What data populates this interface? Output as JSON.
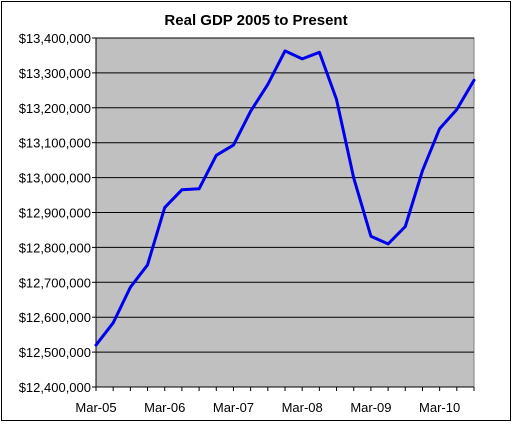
{
  "chart_data": {
    "type": "line",
    "title": "Real GDP 2005 to Present",
    "xlabel": "",
    "ylabel": "",
    "ylim": [
      12400000,
      13400000
    ],
    "yticks": [
      "$12,400,000",
      "$12,500,000",
      "$12,600,000",
      "$12,700,000",
      "$12,800,000",
      "$12,900,000",
      "$13,000,000",
      "$13,100,000",
      "$13,200,000",
      "$13,300,000",
      "$13,400,000"
    ],
    "ytick_values": [
      12400000,
      12500000,
      12600000,
      12700000,
      12800000,
      12900000,
      13000000,
      13100000,
      13200000,
      13300000,
      13400000
    ],
    "xticks": [
      "Mar-05",
      "Mar-06",
      "Mar-07",
      "Mar-08",
      "Mar-09",
      "Mar-10"
    ],
    "xtick_index": [
      0,
      4,
      8,
      12,
      16,
      20
    ],
    "grid": true,
    "legend": "none",
    "colors": {
      "line": "#0000ee",
      "plot_bg": "#c0c0c0",
      "gridline": "#000000"
    },
    "x": [
      "Mar-05",
      "Jun-05",
      "Sep-05",
      "Dec-05",
      "Mar-06",
      "Jun-06",
      "Sep-06",
      "Dec-06",
      "Mar-07",
      "Jun-07",
      "Sep-07",
      "Dec-07",
      "Mar-08",
      "Jun-08",
      "Sep-08",
      "Dec-08",
      "Mar-09",
      "Jun-09",
      "Sep-09",
      "Dec-09",
      "Mar-10",
      "Jun-10",
      "Sep-10"
    ],
    "values": [
      12520000,
      12584000,
      12686000,
      12750000,
      12914000,
      12965000,
      12968000,
      13064000,
      13093000,
      13190000,
      13267000,
      13363000,
      13340000,
      13359000,
      13224000,
      12999000,
      12832000,
      12810000,
      12860000,
      13020000,
      13140000,
      13195000,
      13279000
    ]
  }
}
